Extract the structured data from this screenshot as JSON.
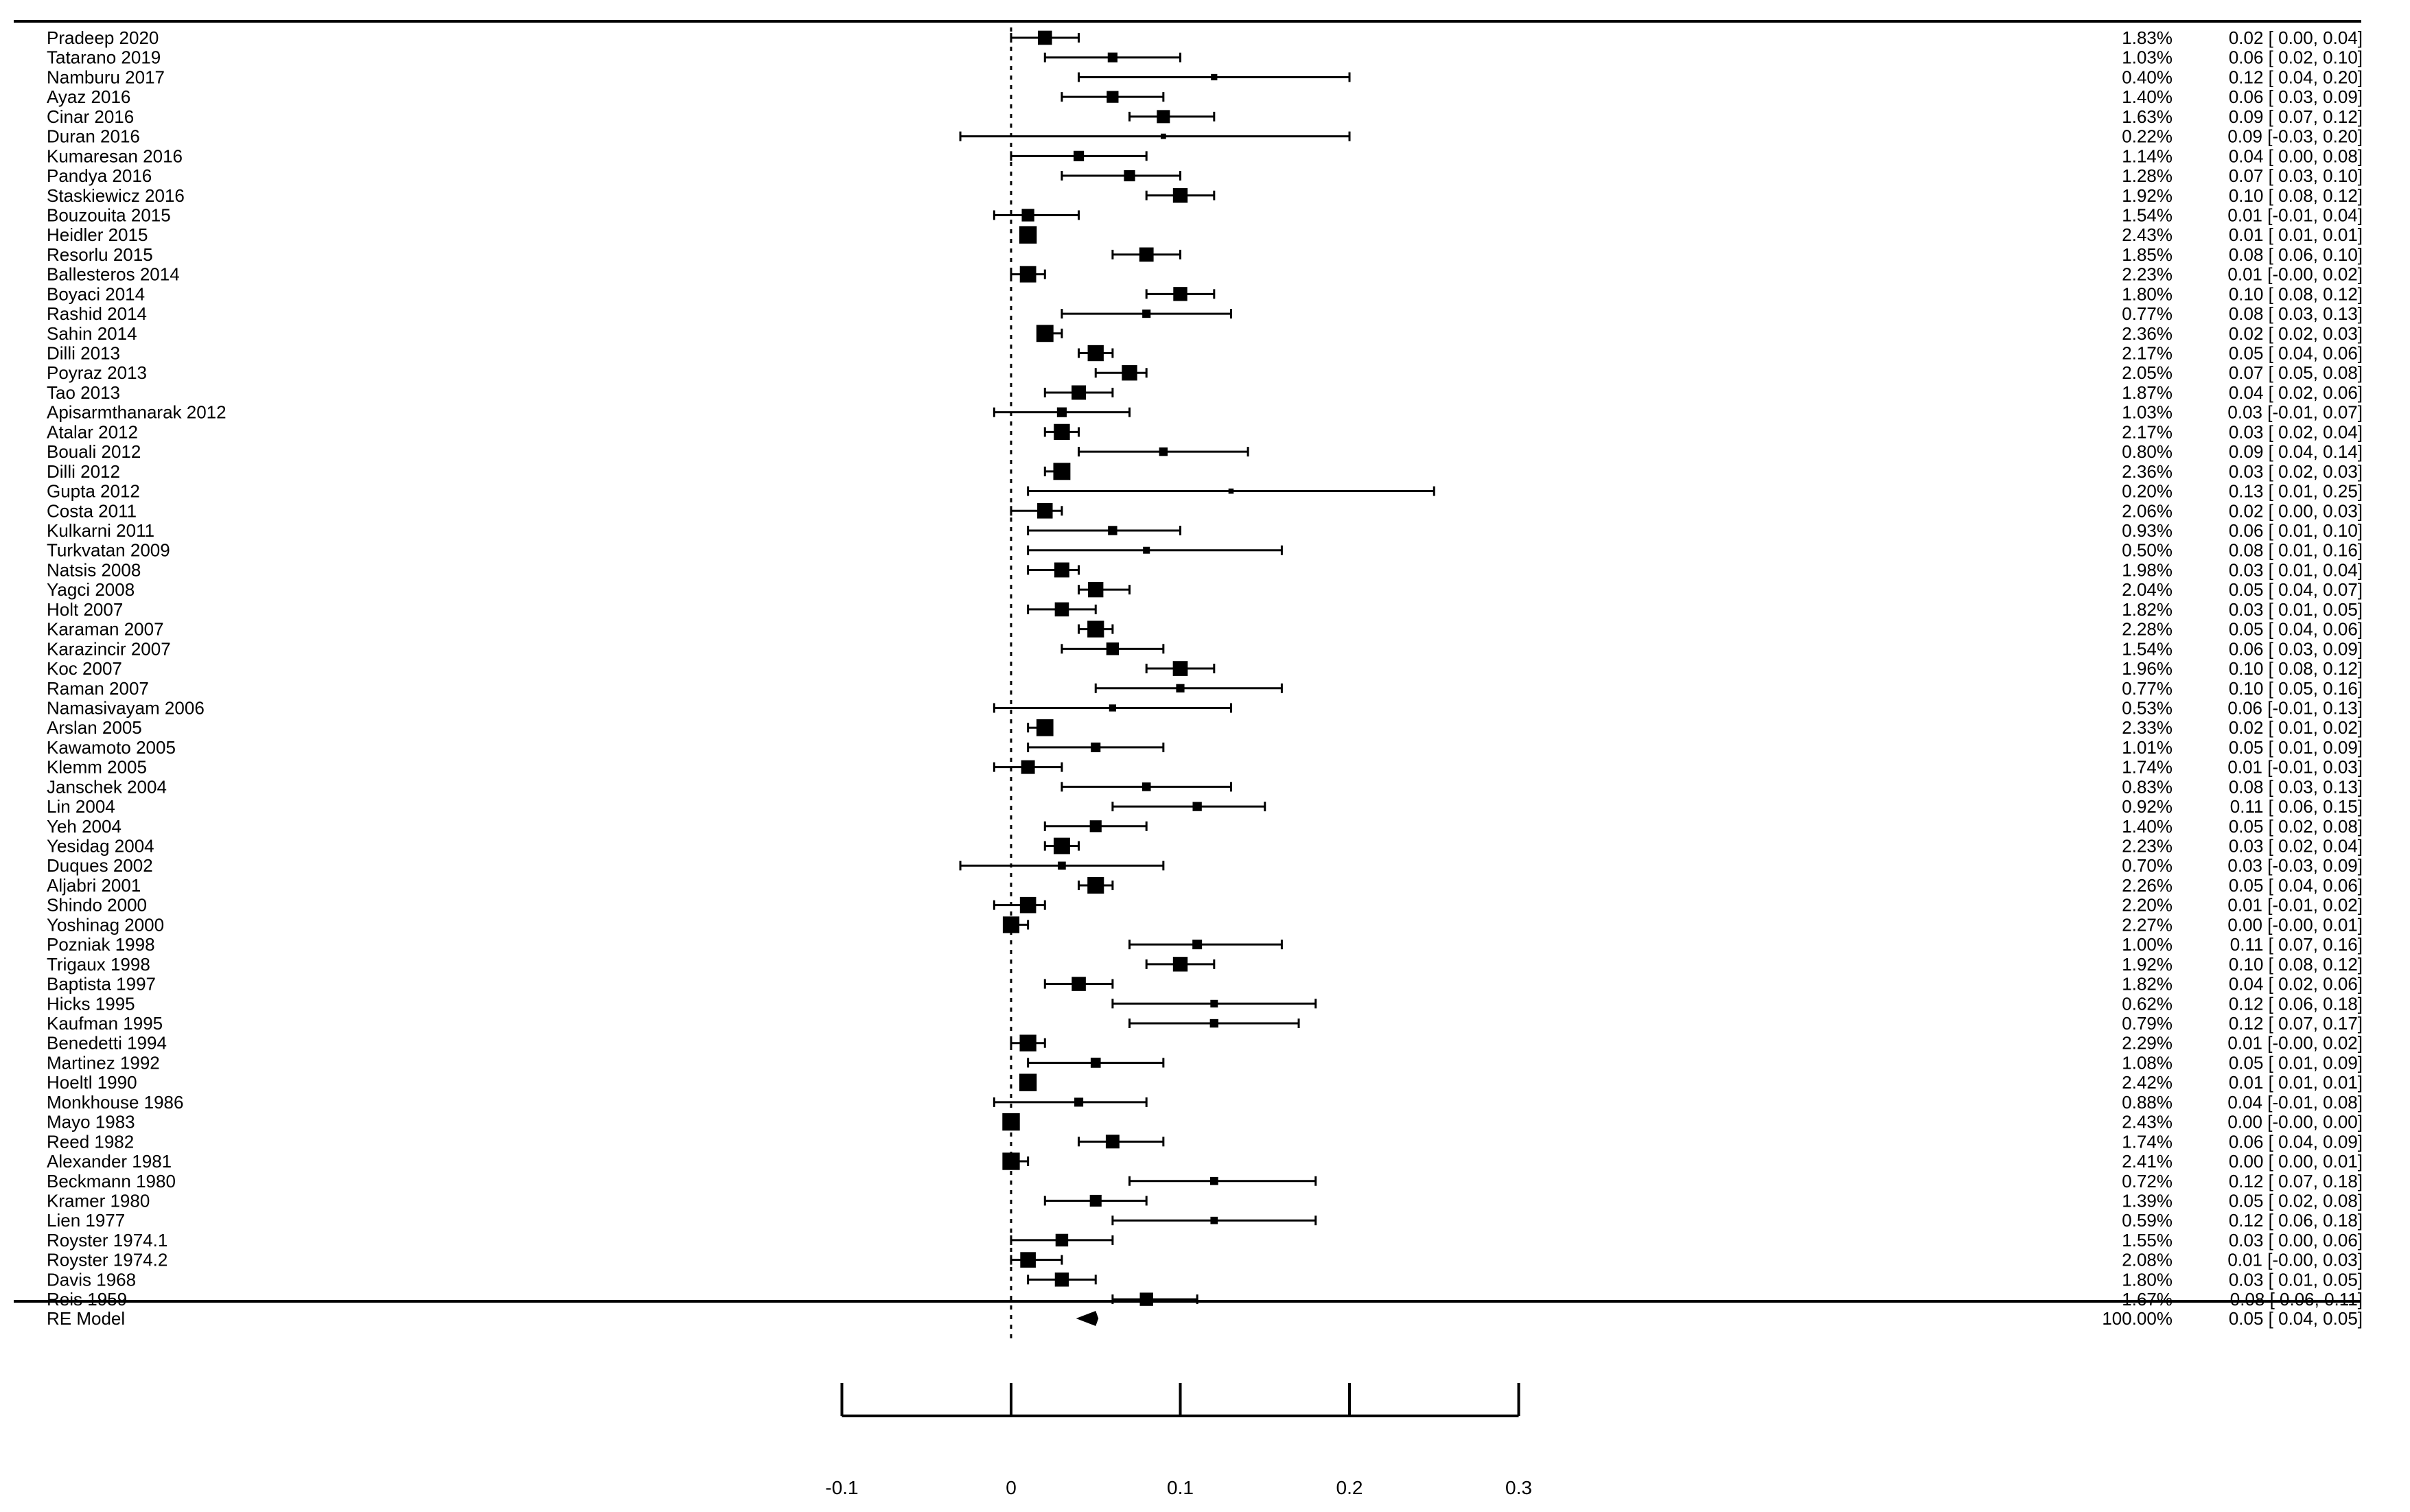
{
  "chart_data": {
    "type": "forest",
    "studies": [
      {
        "label": "Pradeep 2020",
        "weight": "1.83%",
        "est": 0.02,
        "lo": 0.0,
        "hi": 0.04,
        "ci_text": "0.02 [ 0.00, 0.04]"
      },
      {
        "label": "Tatarano 2019",
        "weight": "1.03%",
        "est": 0.06,
        "lo": 0.02,
        "hi": 0.1,
        "ci_text": "0.06 [ 0.02, 0.10]"
      },
      {
        "label": "Namburu 2017",
        "weight": "0.40%",
        "est": 0.12,
        "lo": 0.04,
        "hi": 0.2,
        "ci_text": "0.12 [ 0.04, 0.20]"
      },
      {
        "label": "Ayaz 2016",
        "weight": "1.40%",
        "est": 0.06,
        "lo": 0.03,
        "hi": 0.09,
        "ci_text": "0.06 [ 0.03, 0.09]"
      },
      {
        "label": "Cinar 2016",
        "weight": "1.63%",
        "est": 0.09,
        "lo": 0.07,
        "hi": 0.12,
        "ci_text": "0.09 [ 0.07, 0.12]"
      },
      {
        "label": "Duran 2016",
        "weight": "0.22%",
        "est": 0.09,
        "lo": -0.03,
        "hi": 0.2,
        "ci_text": "0.09 [-0.03, 0.20]"
      },
      {
        "label": "Kumaresan 2016",
        "weight": "1.14%",
        "est": 0.04,
        "lo": 0.0,
        "hi": 0.08,
        "ci_text": "0.04 [ 0.00, 0.08]"
      },
      {
        "label": "Pandya 2016",
        "weight": "1.28%",
        "est": 0.07,
        "lo": 0.03,
        "hi": 0.1,
        "ci_text": "0.07 [ 0.03, 0.10]"
      },
      {
        "label": "Staskiewicz 2016",
        "weight": "1.92%",
        "est": 0.1,
        "lo": 0.08,
        "hi": 0.12,
        "ci_text": "0.10 [ 0.08, 0.12]"
      },
      {
        "label": "Bouzouita 2015",
        "weight": "1.54%",
        "est": 0.01,
        "lo": -0.01,
        "hi": 0.04,
        "ci_text": "0.01 [-0.01, 0.04]"
      },
      {
        "label": "Heidler 2015",
        "weight": "2.43%",
        "est": 0.01,
        "lo": 0.01,
        "hi": 0.01,
        "ci_text": "0.01 [ 0.01, 0.01]"
      },
      {
        "label": "Resorlu 2015",
        "weight": "1.85%",
        "est": 0.08,
        "lo": 0.06,
        "hi": 0.1,
        "ci_text": "0.08 [ 0.06, 0.10]"
      },
      {
        "label": "Ballesteros 2014",
        "weight": "2.23%",
        "est": 0.01,
        "lo": -0.0,
        "hi": 0.02,
        "ci_text": "0.01 [-0.00, 0.02]"
      },
      {
        "label": "Boyaci 2014",
        "weight": "1.80%",
        "est": 0.1,
        "lo": 0.08,
        "hi": 0.12,
        "ci_text": "0.10 [ 0.08, 0.12]"
      },
      {
        "label": "Rashid 2014",
        "weight": "0.77%",
        "est": 0.08,
        "lo": 0.03,
        "hi": 0.13,
        "ci_text": "0.08 [ 0.03, 0.13]"
      },
      {
        "label": "Sahin 2014",
        "weight": "2.36%",
        "est": 0.02,
        "lo": 0.02,
        "hi": 0.03,
        "ci_text": "0.02 [ 0.02, 0.03]"
      },
      {
        "label": "Dilli 2013",
        "weight": "2.17%",
        "est": 0.05,
        "lo": 0.04,
        "hi": 0.06,
        "ci_text": "0.05 [ 0.04, 0.06]"
      },
      {
        "label": "Poyraz 2013",
        "weight": "2.05%",
        "est": 0.07,
        "lo": 0.05,
        "hi": 0.08,
        "ci_text": "0.07 [ 0.05, 0.08]"
      },
      {
        "label": "Tao 2013",
        "weight": "1.87%",
        "est": 0.04,
        "lo": 0.02,
        "hi": 0.06,
        "ci_text": "0.04 [ 0.02, 0.06]"
      },
      {
        "label": "Apisarmthanarak 2012",
        "weight": "1.03%",
        "est": 0.03,
        "lo": -0.01,
        "hi": 0.07,
        "ci_text": "0.03 [-0.01, 0.07]"
      },
      {
        "label": "Atalar 2012",
        "weight": "2.17%",
        "est": 0.03,
        "lo": 0.02,
        "hi": 0.04,
        "ci_text": "0.03 [ 0.02, 0.04]"
      },
      {
        "label": "Bouali 2012",
        "weight": "0.80%",
        "est": 0.09,
        "lo": 0.04,
        "hi": 0.14,
        "ci_text": "0.09 [ 0.04, 0.14]"
      },
      {
        "label": "Dilli 2012",
        "weight": "2.36%",
        "est": 0.03,
        "lo": 0.02,
        "hi": 0.03,
        "ci_text": "0.03 [ 0.02, 0.03]"
      },
      {
        "label": "Gupta 2012",
        "weight": "0.20%",
        "est": 0.13,
        "lo": 0.01,
        "hi": 0.25,
        "ci_text": "0.13 [ 0.01, 0.25]"
      },
      {
        "label": "Costa 2011",
        "weight": "2.06%",
        "est": 0.02,
        "lo": 0.0,
        "hi": 0.03,
        "ci_text": "0.02 [ 0.00, 0.03]"
      },
      {
        "label": "Kulkarni 2011",
        "weight": "0.93%",
        "est": 0.06,
        "lo": 0.01,
        "hi": 0.1,
        "ci_text": "0.06 [ 0.01, 0.10]"
      },
      {
        "label": "Turkvatan 2009",
        "weight": "0.50%",
        "est": 0.08,
        "lo": 0.01,
        "hi": 0.16,
        "ci_text": "0.08 [ 0.01, 0.16]"
      },
      {
        "label": "Natsis 2008",
        "weight": "1.98%",
        "est": 0.03,
        "lo": 0.01,
        "hi": 0.04,
        "ci_text": "0.03 [ 0.01, 0.04]"
      },
      {
        "label": "Yagci 2008",
        "weight": "2.04%",
        "est": 0.05,
        "lo": 0.04,
        "hi": 0.07,
        "ci_text": "0.05 [ 0.04, 0.07]"
      },
      {
        "label": "Holt 2007",
        "weight": "1.82%",
        "est": 0.03,
        "lo": 0.01,
        "hi": 0.05,
        "ci_text": "0.03 [ 0.01, 0.05]"
      },
      {
        "label": "Karaman 2007",
        "weight": "2.28%",
        "est": 0.05,
        "lo": 0.04,
        "hi": 0.06,
        "ci_text": "0.05 [ 0.04, 0.06]"
      },
      {
        "label": "Karazincir 2007",
        "weight": "1.54%",
        "est": 0.06,
        "lo": 0.03,
        "hi": 0.09,
        "ci_text": "0.06 [ 0.03, 0.09]"
      },
      {
        "label": "Koc 2007",
        "weight": "1.96%",
        "est": 0.1,
        "lo": 0.08,
        "hi": 0.12,
        "ci_text": "0.10 [ 0.08, 0.12]"
      },
      {
        "label": "Raman 2007",
        "weight": "0.77%",
        "est": 0.1,
        "lo": 0.05,
        "hi": 0.16,
        "ci_text": "0.10 [ 0.05, 0.16]"
      },
      {
        "label": "Namasivayam 2006",
        "weight": "0.53%",
        "est": 0.06,
        "lo": -0.01,
        "hi": 0.13,
        "ci_text": "0.06 [-0.01, 0.13]"
      },
      {
        "label": "Arslan 2005",
        "weight": "2.33%",
        "est": 0.02,
        "lo": 0.01,
        "hi": 0.02,
        "ci_text": "0.02 [ 0.01, 0.02]"
      },
      {
        "label": "Kawamoto 2005",
        "weight": "1.01%",
        "est": 0.05,
        "lo": 0.01,
        "hi": 0.09,
        "ci_text": "0.05 [ 0.01, 0.09]"
      },
      {
        "label": "Klemm 2005",
        "weight": "1.74%",
        "est": 0.01,
        "lo": -0.01,
        "hi": 0.03,
        "ci_text": "0.01 [-0.01, 0.03]"
      },
      {
        "label": "Janschek 2004",
        "weight": "0.83%",
        "est": 0.08,
        "lo": 0.03,
        "hi": 0.13,
        "ci_text": "0.08 [ 0.03, 0.13]"
      },
      {
        "label": "Lin 2004",
        "weight": "0.92%",
        "est": 0.11,
        "lo": 0.06,
        "hi": 0.15,
        "ci_text": "0.11 [ 0.06, 0.15]"
      },
      {
        "label": "Yeh 2004",
        "weight": "1.40%",
        "est": 0.05,
        "lo": 0.02,
        "hi": 0.08,
        "ci_text": "0.05 [ 0.02, 0.08]"
      },
      {
        "label": "Yesidag 2004",
        "weight": "2.23%",
        "est": 0.03,
        "lo": 0.02,
        "hi": 0.04,
        "ci_text": "0.03 [ 0.02, 0.04]"
      },
      {
        "label": "Duques 2002",
        "weight": "0.70%",
        "est": 0.03,
        "lo": -0.03,
        "hi": 0.09,
        "ci_text": "0.03 [-0.03, 0.09]"
      },
      {
        "label": "Aljabri 2001",
        "weight": "2.26%",
        "est": 0.05,
        "lo": 0.04,
        "hi": 0.06,
        "ci_text": "0.05 [ 0.04, 0.06]"
      },
      {
        "label": "Shindo 2000",
        "weight": "2.20%",
        "est": 0.01,
        "lo": -0.01,
        "hi": 0.02,
        "ci_text": "0.01 [-0.01, 0.02]"
      },
      {
        "label": "Yoshinag 2000",
        "weight": "2.27%",
        "est": 0.0,
        "lo": -0.0,
        "hi": 0.01,
        "ci_text": "0.00 [-0.00, 0.01]"
      },
      {
        "label": "Pozniak 1998",
        "weight": "1.00%",
        "est": 0.11,
        "lo": 0.07,
        "hi": 0.16,
        "ci_text": "0.11 [ 0.07, 0.16]"
      },
      {
        "label": "Trigaux 1998",
        "weight": "1.92%",
        "est": 0.1,
        "lo": 0.08,
        "hi": 0.12,
        "ci_text": "0.10 [ 0.08, 0.12]"
      },
      {
        "label": "Baptista 1997",
        "weight": "1.82%",
        "est": 0.04,
        "lo": 0.02,
        "hi": 0.06,
        "ci_text": "0.04 [ 0.02, 0.06]"
      },
      {
        "label": "Hicks 1995",
        "weight": "0.62%",
        "est": 0.12,
        "lo": 0.06,
        "hi": 0.18,
        "ci_text": "0.12 [ 0.06, 0.18]"
      },
      {
        "label": "Kaufman 1995",
        "weight": "0.79%",
        "est": 0.12,
        "lo": 0.07,
        "hi": 0.17,
        "ci_text": "0.12 [ 0.07, 0.17]"
      },
      {
        "label": "Benedetti 1994",
        "weight": "2.29%",
        "est": 0.01,
        "lo": -0.0,
        "hi": 0.02,
        "ci_text": "0.01 [-0.00, 0.02]"
      },
      {
        "label": "Martinez 1992",
        "weight": "1.08%",
        "est": 0.05,
        "lo": 0.01,
        "hi": 0.09,
        "ci_text": "0.05 [ 0.01, 0.09]"
      },
      {
        "label": "Hoeltl 1990",
        "weight": "2.42%",
        "est": 0.01,
        "lo": 0.01,
        "hi": 0.01,
        "ci_text": "0.01 [ 0.01, 0.01]"
      },
      {
        "label": "Monkhouse 1986",
        "weight": "0.88%",
        "est": 0.04,
        "lo": -0.01,
        "hi": 0.08,
        "ci_text": "0.04 [-0.01, 0.08]"
      },
      {
        "label": "Mayo 1983",
        "weight": "2.43%",
        "est": 0.0,
        "lo": -0.0,
        "hi": 0.0,
        "ci_text": "0.00 [-0.00, 0.00]"
      },
      {
        "label": "Reed 1982",
        "weight": "1.74%",
        "est": 0.06,
        "lo": 0.04,
        "hi": 0.09,
        "ci_text": "0.06 [ 0.04, 0.09]"
      },
      {
        "label": "Alexander 1981",
        "weight": "2.41%",
        "est": 0.0,
        "lo": 0.0,
        "hi": 0.01,
        "ci_text": "0.00 [ 0.00, 0.01]"
      },
      {
        "label": "Beckmann 1980",
        "weight": "0.72%",
        "est": 0.12,
        "lo": 0.07,
        "hi": 0.18,
        "ci_text": "0.12 [ 0.07, 0.18]"
      },
      {
        "label": "Kramer 1980",
        "weight": "1.39%",
        "est": 0.05,
        "lo": 0.02,
        "hi": 0.08,
        "ci_text": "0.05 [ 0.02, 0.08]"
      },
      {
        "label": "Lien 1977",
        "weight": "0.59%",
        "est": 0.12,
        "lo": 0.06,
        "hi": 0.18,
        "ci_text": "0.12 [ 0.06, 0.18]"
      },
      {
        "label": "Royster 1974.1",
        "weight": "1.55%",
        "est": 0.03,
        "lo": 0.0,
        "hi": 0.06,
        "ci_text": "0.03 [ 0.00, 0.06]"
      },
      {
        "label": "Royster 1974.2",
        "weight": "2.08%",
        "est": 0.01,
        "lo": -0.0,
        "hi": 0.03,
        "ci_text": "0.01 [-0.00, 0.03]"
      },
      {
        "label": "Davis 1968",
        "weight": "1.80%",
        "est": 0.03,
        "lo": 0.01,
        "hi": 0.05,
        "ci_text": "0.03 [ 0.01, 0.05]"
      },
      {
        "label": "Reis 1959",
        "weight": "1.67%",
        "est": 0.08,
        "lo": 0.06,
        "hi": 0.11,
        "ci_text": "0.08 [ 0.06, 0.11]"
      }
    ],
    "summary": {
      "label": "RE Model",
      "weight": "100.00%",
      "est": 0.05,
      "lo": 0.04,
      "hi": 0.05,
      "ci_text": "0.05 [ 0.04, 0.05]"
    },
    "x_ticks": [
      -0.1,
      0,
      0.1,
      0.2,
      0.3
    ],
    "x_tick_labels": [
      "-0.1",
      "0",
      "0.1",
      "0.2",
      "0.3"
    ],
    "xlim": [
      -0.1,
      0.3
    ],
    "reference_line": 0,
    "xlabel": "",
    "title": ""
  }
}
